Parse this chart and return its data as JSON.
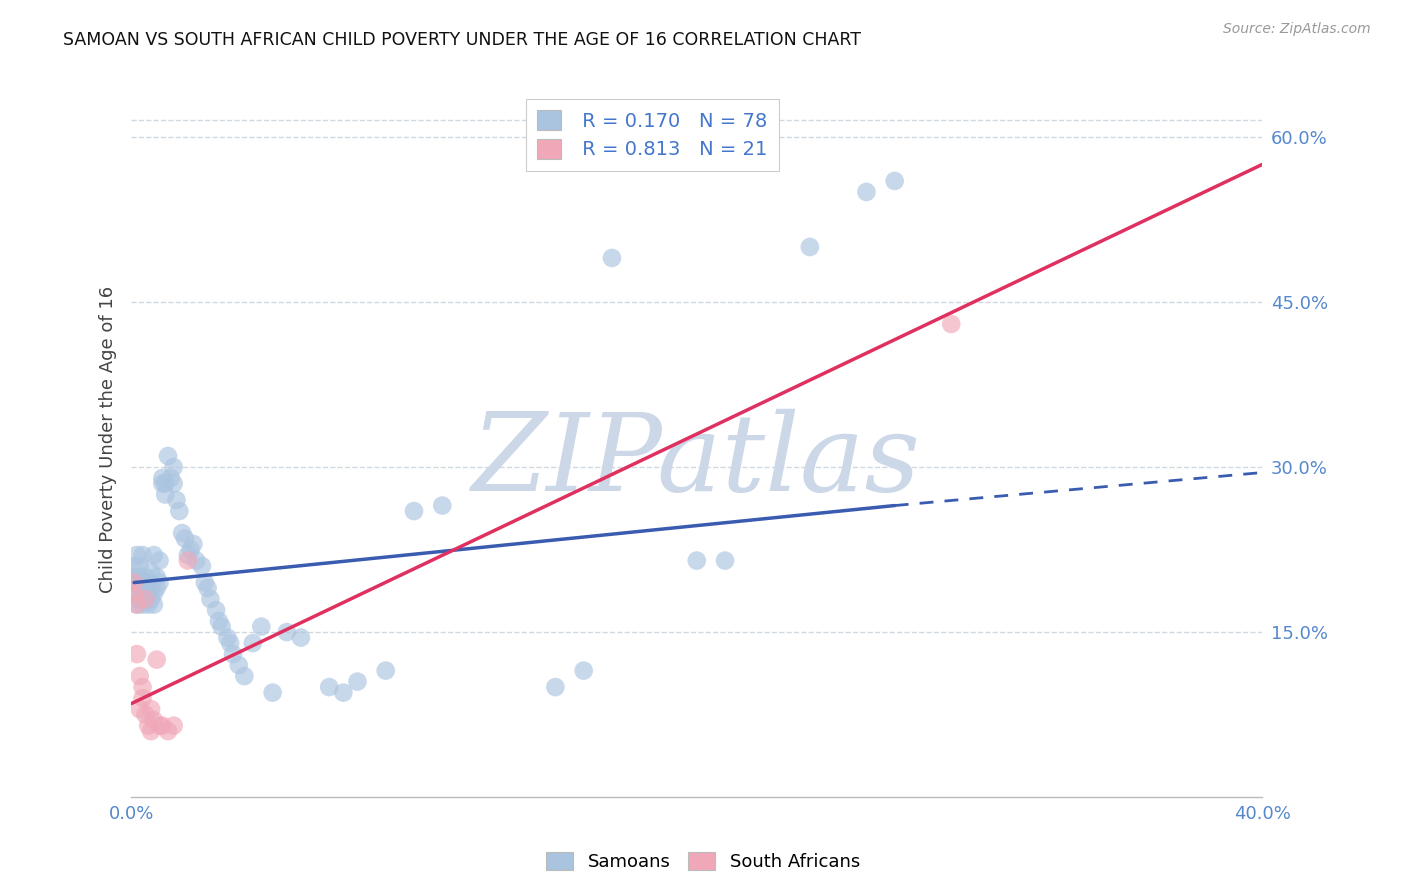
{
  "title": "SAMOAN VS SOUTH AFRICAN CHILD POVERTY UNDER THE AGE OF 16 CORRELATION CHART",
  "source": "Source: ZipAtlas.com",
  "ylabel": "Child Poverty Under the Age of 16",
  "xlim": [
    0.0,
    0.4
  ],
  "ylim": [
    0.0,
    0.65
  ],
  "x_ticks": [
    0.0,
    0.05,
    0.1,
    0.15,
    0.2,
    0.25,
    0.3,
    0.35,
    0.4
  ],
  "x_tick_labels": [
    "0.0%",
    "",
    "",
    "",
    "",
    "",
    "",
    "",
    "40.0%"
  ],
  "y_ticks_right": [
    0.15,
    0.3,
    0.45,
    0.6
  ],
  "y_tick_labels_right": [
    "15.0%",
    "30.0%",
    "45.0%",
    "60.0%"
  ],
  "background_color": "#ffffff",
  "grid_color": "#d0d8e0",
  "watermark_text": "ZIPatlas",
  "watermark_color": "#ccd8e8",
  "samoans_color": "#aac4e0",
  "south_africans_color": "#f0a8b8",
  "samoans_line_color": "#3a5cb0",
  "south_africans_line_color": "#e03060",
  "legend_r_samoans": "R = 0.170",
  "legend_n_samoans": "N = 78",
  "legend_r_south_africans": "R = 0.813",
  "legend_n_south_africans": "N = 21",
  "samoans_x": [
    0.001,
    0.001,
    0.001,
    0.002,
    0.002,
    0.002,
    0.002,
    0.003,
    0.003,
    0.003,
    0.003,
    0.004,
    0.004,
    0.004,
    0.004,
    0.005,
    0.005,
    0.005,
    0.006,
    0.006,
    0.006,
    0.007,
    0.007,
    0.007,
    0.008,
    0.008,
    0.008,
    0.009,
    0.009,
    0.01,
    0.01,
    0.011,
    0.011,
    0.012,
    0.012,
    0.013,
    0.014,
    0.015,
    0.015,
    0.016,
    0.017,
    0.018,
    0.019,
    0.02,
    0.021,
    0.022,
    0.023,
    0.025,
    0.026,
    0.027,
    0.028,
    0.03,
    0.031,
    0.032,
    0.034,
    0.035,
    0.036,
    0.038,
    0.04,
    0.043,
    0.046,
    0.05,
    0.055,
    0.06,
    0.07,
    0.075,
    0.08,
    0.09,
    0.1,
    0.11,
    0.15,
    0.16,
    0.17,
    0.2,
    0.21,
    0.24,
    0.26,
    0.27
  ],
  "samoans_y": [
    0.195,
    0.2,
    0.21,
    0.185,
    0.175,
    0.195,
    0.22,
    0.18,
    0.19,
    0.2,
    0.21,
    0.175,
    0.185,
    0.195,
    0.22,
    0.18,
    0.19,
    0.2,
    0.175,
    0.185,
    0.195,
    0.18,
    0.19,
    0.205,
    0.175,
    0.185,
    0.22,
    0.19,
    0.2,
    0.195,
    0.215,
    0.285,
    0.29,
    0.275,
    0.285,
    0.31,
    0.29,
    0.285,
    0.3,
    0.27,
    0.26,
    0.24,
    0.235,
    0.22,
    0.225,
    0.23,
    0.215,
    0.21,
    0.195,
    0.19,
    0.18,
    0.17,
    0.16,
    0.155,
    0.145,
    0.14,
    0.13,
    0.12,
    0.11,
    0.14,
    0.155,
    0.095,
    0.15,
    0.145,
    0.1,
    0.095,
    0.105,
    0.115,
    0.26,
    0.265,
    0.1,
    0.115,
    0.49,
    0.215,
    0.215,
    0.5,
    0.55,
    0.56
  ],
  "south_africans_x": [
    0.001,
    0.001,
    0.002,
    0.002,
    0.003,
    0.003,
    0.004,
    0.004,
    0.005,
    0.005,
    0.006,
    0.007,
    0.007,
    0.008,
    0.009,
    0.01,
    0.011,
    0.013,
    0.015,
    0.02,
    0.29
  ],
  "south_africans_y": [
    0.195,
    0.185,
    0.175,
    0.13,
    0.08,
    0.11,
    0.1,
    0.09,
    0.18,
    0.075,
    0.065,
    0.06,
    0.08,
    0.07,
    0.125,
    0.065,
    0.065,
    0.06,
    0.065,
    0.215,
    0.43
  ],
  "samoans_trend_x0": 0.001,
  "samoans_trend_x_solid_end": 0.27,
  "samoans_trend_x_dash_end": 0.4,
  "samoans_trend_y_at_x0": 0.195,
  "samoans_trend_y_at_solid_end": 0.265,
  "samoans_trend_y_at_dash_end": 0.295,
  "sa_trend_x0": 0.0,
  "sa_trend_x_end": 0.4,
  "sa_trend_y_at_x0": 0.085,
  "sa_trend_y_at_xend": 0.575
}
